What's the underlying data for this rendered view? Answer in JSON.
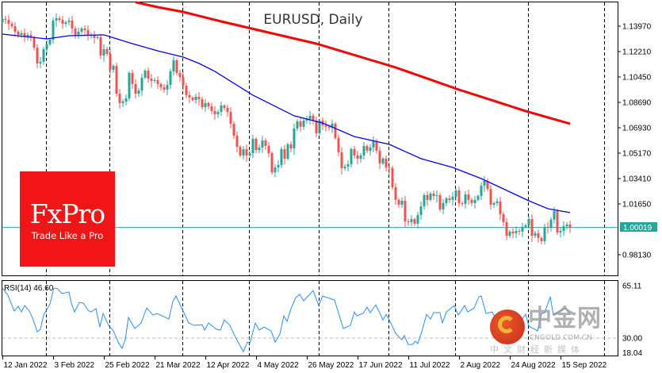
{
  "chart_data": {
    "type": "candlestick",
    "title": "EURUSD, Daily",
    "symbol": "EURUSD",
    "timeframe": "Daily",
    "colors": {
      "bull": "#26a69a",
      "bear": "#ef5350",
      "ma_fast": "#0000ff",
      "ma_slow": "#ff0000",
      "price_line": "#26a69a",
      "rsi": "#1e90ff"
    },
    "price_axis": {
      "ticks": [
        "1.13970",
        "1.12210",
        "1.10450",
        "1.08690",
        "1.06930",
        "1.05170",
        "1.03410",
        "1.01650",
        "0.98130"
      ],
      "range": [
        0.976,
        1.1575
      ],
      "current_price": "1.00019"
    },
    "date_axis": {
      "labels": [
        {
          "bar": 0,
          "text": "12 Jan 2022"
        },
        {
          "bar": 16,
          "text": "3 Feb 2022"
        },
        {
          "bar": 32,
          "text": "25 Feb 2022"
        },
        {
          "bar": 48,
          "text": "21 Mar 2022"
        },
        {
          "bar": 64,
          "text": "12 Apr 2022"
        },
        {
          "bar": 80,
          "text": "4 May 2022"
        },
        {
          "bar": 96,
          "text": "26 May 2022"
        },
        {
          "bar": 112,
          "text": "17 Jun 2022"
        },
        {
          "bar": 128,
          "text": "11 Jul 2022"
        },
        {
          "bar": 144,
          "text": "2 Aug 2022"
        },
        {
          "bar": 160,
          "text": "24 Aug 2022"
        },
        {
          "bar": 176,
          "text": "15 Sep 2022"
        }
      ],
      "period_separators_bar": [
        13.75,
        33.75,
        56.75,
        77.75,
        99.75,
        121.75,
        142.75,
        165.75,
        189.75
      ]
    },
    "first_open": 1.1425,
    "close": [
      1.1447,
      1.1441,
      1.1414,
      1.1397,
      1.1359,
      1.1337,
      1.1348,
      1.1326,
      1.1337,
      1.132,
      1.1249,
      1.1139,
      1.115,
      1.1238,
      1.1271,
      1.1304,
      1.1436,
      1.1452,
      1.1441,
      1.1414,
      1.1425,
      1.1436,
      1.1381,
      1.1337,
      1.1359,
      1.1381,
      1.137,
      1.1331,
      1.1337,
      1.1315,
      1.132,
      1.1194,
      1.1238,
      1.1205,
      1.1095,
      1.1122,
      1.0929,
      1.0864,
      1.0875,
      1.0897,
      1.1073,
      1.0996,
      1.0929,
      1.0951,
      1.104,
      1.1089,
      1.1034,
      1.1018,
      1.1023,
      1.0996,
      1.0974,
      1.0957,
      1.099,
      1.1084,
      1.1161,
      1.1073,
      1.1045,
      1.0985,
      1.0919,
      1.0902,
      1.0886,
      1.0908,
      1.0891,
      1.0836,
      1.0864,
      1.0842,
      1.0809,
      1.0787,
      1.0803,
      1.0847,
      1.0831,
      1.0803,
      1.0721,
      1.0638,
      1.0561,
      1.0501,
      1.0545,
      1.0501,
      1.0517,
      1.0616,
      1.0539,
      1.0556,
      1.0605,
      1.0567,
      1.0517,
      1.0385,
      1.0418,
      1.0435,
      1.0545,
      1.0479,
      1.0578,
      1.055,
      1.0688,
      1.0737,
      1.07,
      1.0743,
      1.0754,
      1.0776,
      1.0743,
      1.0655,
      1.0743,
      1.071,
      1.07,
      1.0694,
      1.0721,
      1.0623,
      1.0523,
      1.0413,
      1.0424,
      1.044,
      1.0545,
      1.0501,
      1.0479,
      1.0501,
      1.0567,
      1.0534,
      1.0556,
      1.06,
      1.0534,
      1.0446,
      1.0479,
      1.0418,
      1.0413,
      1.0281,
      1.0193,
      1.016,
      1.0187,
      1.0044,
      1.0039,
      1.006,
      1.0028,
      1.0088,
      1.0149,
      1.0226,
      1.0193,
      1.0237,
      1.022,
      1.0226,
      1.0127,
      1.0171,
      1.0204,
      1.0193,
      1.0215,
      1.0259,
      1.0171,
      1.0166,
      1.0231,
      1.0193,
      1.0171,
      1.0193,
      1.022,
      1.0292,
      1.0325,
      1.0269,
      1.016,
      1.0171,
      1.0182,
      1.0094,
      1.0039,
      0.9945,
      0.9973,
      0.9962,
      0.9978,
      0.9973,
      1.0006,
      1.0017,
      1.006,
      0.9945,
      0.9962,
      0.9929,
      0.9907,
      1.0006,
      1.0001,
      1.0057,
      1.0116,
      0.9967,
      0.9978,
      1.0011,
      1.0022,
      1.0002
    ],
    "ma_fast": [
      [
        0,
        1.1342
      ],
      [
        14,
        1.1309
      ],
      [
        21,
        1.1331
      ],
      [
        32,
        1.1337
      ],
      [
        41,
        1.1276
      ],
      [
        49,
        1.1226
      ],
      [
        57,
        1.1183
      ],
      [
        62,
        1.1139
      ],
      [
        67,
        1.1084
      ],
      [
        79,
        1.0919
      ],
      [
        92,
        1.0776
      ],
      [
        101,
        1.0726
      ],
      [
        111,
        1.0632
      ],
      [
        122,
        1.0578
      ],
      [
        132,
        1.0479
      ],
      [
        142,
        1.0418
      ],
      [
        151,
        1.0341
      ],
      [
        159,
        1.0259
      ],
      [
        166,
        1.0187
      ],
      [
        172,
        1.0132
      ],
      [
        179,
        1.0105
      ]
    ],
    "ma_slow": [
      [
        42,
        1.1563
      ],
      [
        49,
        1.1529
      ],
      [
        57,
        1.1496
      ],
      [
        69,
        1.143
      ],
      [
        99,
        1.1276
      ],
      [
        124,
        1.1111
      ],
      [
        144,
        1.0957
      ],
      [
        165,
        1.0809
      ],
      [
        179,
        1.0721
      ]
    ],
    "rsi": {
      "label": "RSI(14) 46.60",
      "period": 14,
      "current": 46.6,
      "axis_ticks": [
        "65.11",
        "30.00",
        "18.04"
      ],
      "level": 30,
      "range": [
        18.04,
        65.11
      ],
      "points": [
        [
          0,
          63.5
        ],
        [
          1.75,
          58.7
        ],
        [
          3.75,
          48.1
        ],
        [
          5,
          51.3
        ],
        [
          6,
          47.5
        ],
        [
          7,
          51.8
        ],
        [
          8.5,
          48.1
        ],
        [
          9.75,
          42.2
        ],
        [
          11,
          34.3
        ],
        [
          12,
          35.9
        ],
        [
          13,
          45.4
        ],
        [
          15,
          52.9
        ],
        [
          16.25,
          63.5
        ],
        [
          17.5,
          63.0
        ],
        [
          18.75,
          59.8
        ],
        [
          21,
          60.9
        ],
        [
          21.75,
          53.4
        ],
        [
          22.75,
          47.5
        ],
        [
          24.25,
          53.9
        ],
        [
          25.5,
          53.4
        ],
        [
          27.25,
          48.1
        ],
        [
          28,
          47.5
        ],
        [
          29.5,
          49.7
        ],
        [
          30.75,
          37.4
        ],
        [
          31.75,
          46.5
        ],
        [
          33.5,
          38.5
        ],
        [
          35,
          34.8
        ],
        [
          36.75,
          26.3
        ],
        [
          37.75,
          23.1
        ],
        [
          38.75,
          28.9
        ],
        [
          39.75,
          43.8
        ],
        [
          41.75,
          36.4
        ],
        [
          43.75,
          40.1
        ],
        [
          45.5,
          50.2
        ],
        [
          47.5,
          45.4
        ],
        [
          48.75,
          46.5
        ],
        [
          52.5,
          42.8
        ],
        [
          53.75,
          54.5
        ],
        [
          54.75,
          58.2
        ],
        [
          56.75,
          49.2
        ],
        [
          58.75,
          40.1
        ],
        [
          60.5,
          38.5
        ],
        [
          63,
          39.0
        ],
        [
          63.75,
          35.3
        ],
        [
          65,
          40.1
        ],
        [
          67.5,
          35.9
        ],
        [
          68.75,
          35.3
        ],
        [
          70,
          42.2
        ],
        [
          71.75,
          38.5
        ],
        [
          73.5,
          30.5
        ],
        [
          76,
          21.0
        ],
        [
          77.25,
          27.3
        ],
        [
          78,
          26.3
        ],
        [
          79.75,
          40.1
        ],
        [
          81,
          35.3
        ],
        [
          82.5,
          37.4
        ],
        [
          84.75,
          34.8
        ],
        [
          86,
          27.3
        ],
        [
          87.5,
          32.6
        ],
        [
          88.75,
          44.9
        ],
        [
          89.75,
          41.2
        ],
        [
          91,
          49.7
        ],
        [
          92.5,
          57.1
        ],
        [
          93.75,
          59.3
        ],
        [
          95,
          55.0
        ],
        [
          98,
          61.9
        ],
        [
          99.75,
          51.8
        ],
        [
          101,
          58.2
        ],
        [
          104.75,
          55.5
        ],
        [
          107.5,
          36.4
        ],
        [
          109.75,
          38.5
        ],
        [
          111,
          47.5
        ],
        [
          111.75,
          44.9
        ],
        [
          113.75,
          46.5
        ],
        [
          115,
          50.7
        ],
        [
          116,
          47.0
        ],
        [
          117.75,
          52.3
        ],
        [
          120,
          42.2
        ],
        [
          121,
          45.9
        ],
        [
          122.25,
          41.2
        ],
        [
          124,
          33.2
        ],
        [
          126,
          28.9
        ],
        [
          126.75,
          31.6
        ],
        [
          128,
          25.7
        ],
        [
          129.25,
          25.7
        ],
        [
          130.25,
          27.9
        ],
        [
          131,
          26.3
        ],
        [
          132.25,
          34.3
        ],
        [
          133.75,
          45.9
        ],
        [
          135,
          42.8
        ],
        [
          136,
          47.0
        ],
        [
          138,
          47.0
        ],
        [
          138.75,
          40.1
        ],
        [
          140,
          47.5
        ],
        [
          142.5,
          51.8
        ],
        [
          143.75,
          45.4
        ],
        [
          145.75,
          51.8
        ],
        [
          146.75,
          47.5
        ],
        [
          148.75,
          50.2
        ],
        [
          150.25,
          57.7
        ],
        [
          151,
          58.2
        ],
        [
          152.5,
          46.5
        ],
        [
          154.5,
          47.5
        ],
        [
          156,
          40.6
        ],
        [
          158,
          32.6
        ],
        [
          159,
          35.3
        ],
        [
          161.25,
          36.4
        ],
        [
          162.5,
          38.5
        ],
        [
          165,
          45.9
        ],
        [
          166,
          38.0
        ],
        [
          168.75,
          34.8
        ],
        [
          170,
          46.5
        ],
        [
          171,
          46.9
        ],
        [
          172.75,
          57.7
        ],
        [
          173.75,
          45.4
        ],
        [
          175.5,
          47.5
        ],
        [
          177.5,
          50.2
        ],
        [
          178.75,
          46.6
        ]
      ]
    },
    "grid": false,
    "legend": "none"
  },
  "logos": {
    "fxpro": {
      "brand": "FxPro",
      "tagline": "Trade Like a Pro"
    },
    "cngold": {
      "name": "中金网",
      "domain": "CNGOLD.COM.CN",
      "slogan": "中文财经新媒体"
    }
  }
}
